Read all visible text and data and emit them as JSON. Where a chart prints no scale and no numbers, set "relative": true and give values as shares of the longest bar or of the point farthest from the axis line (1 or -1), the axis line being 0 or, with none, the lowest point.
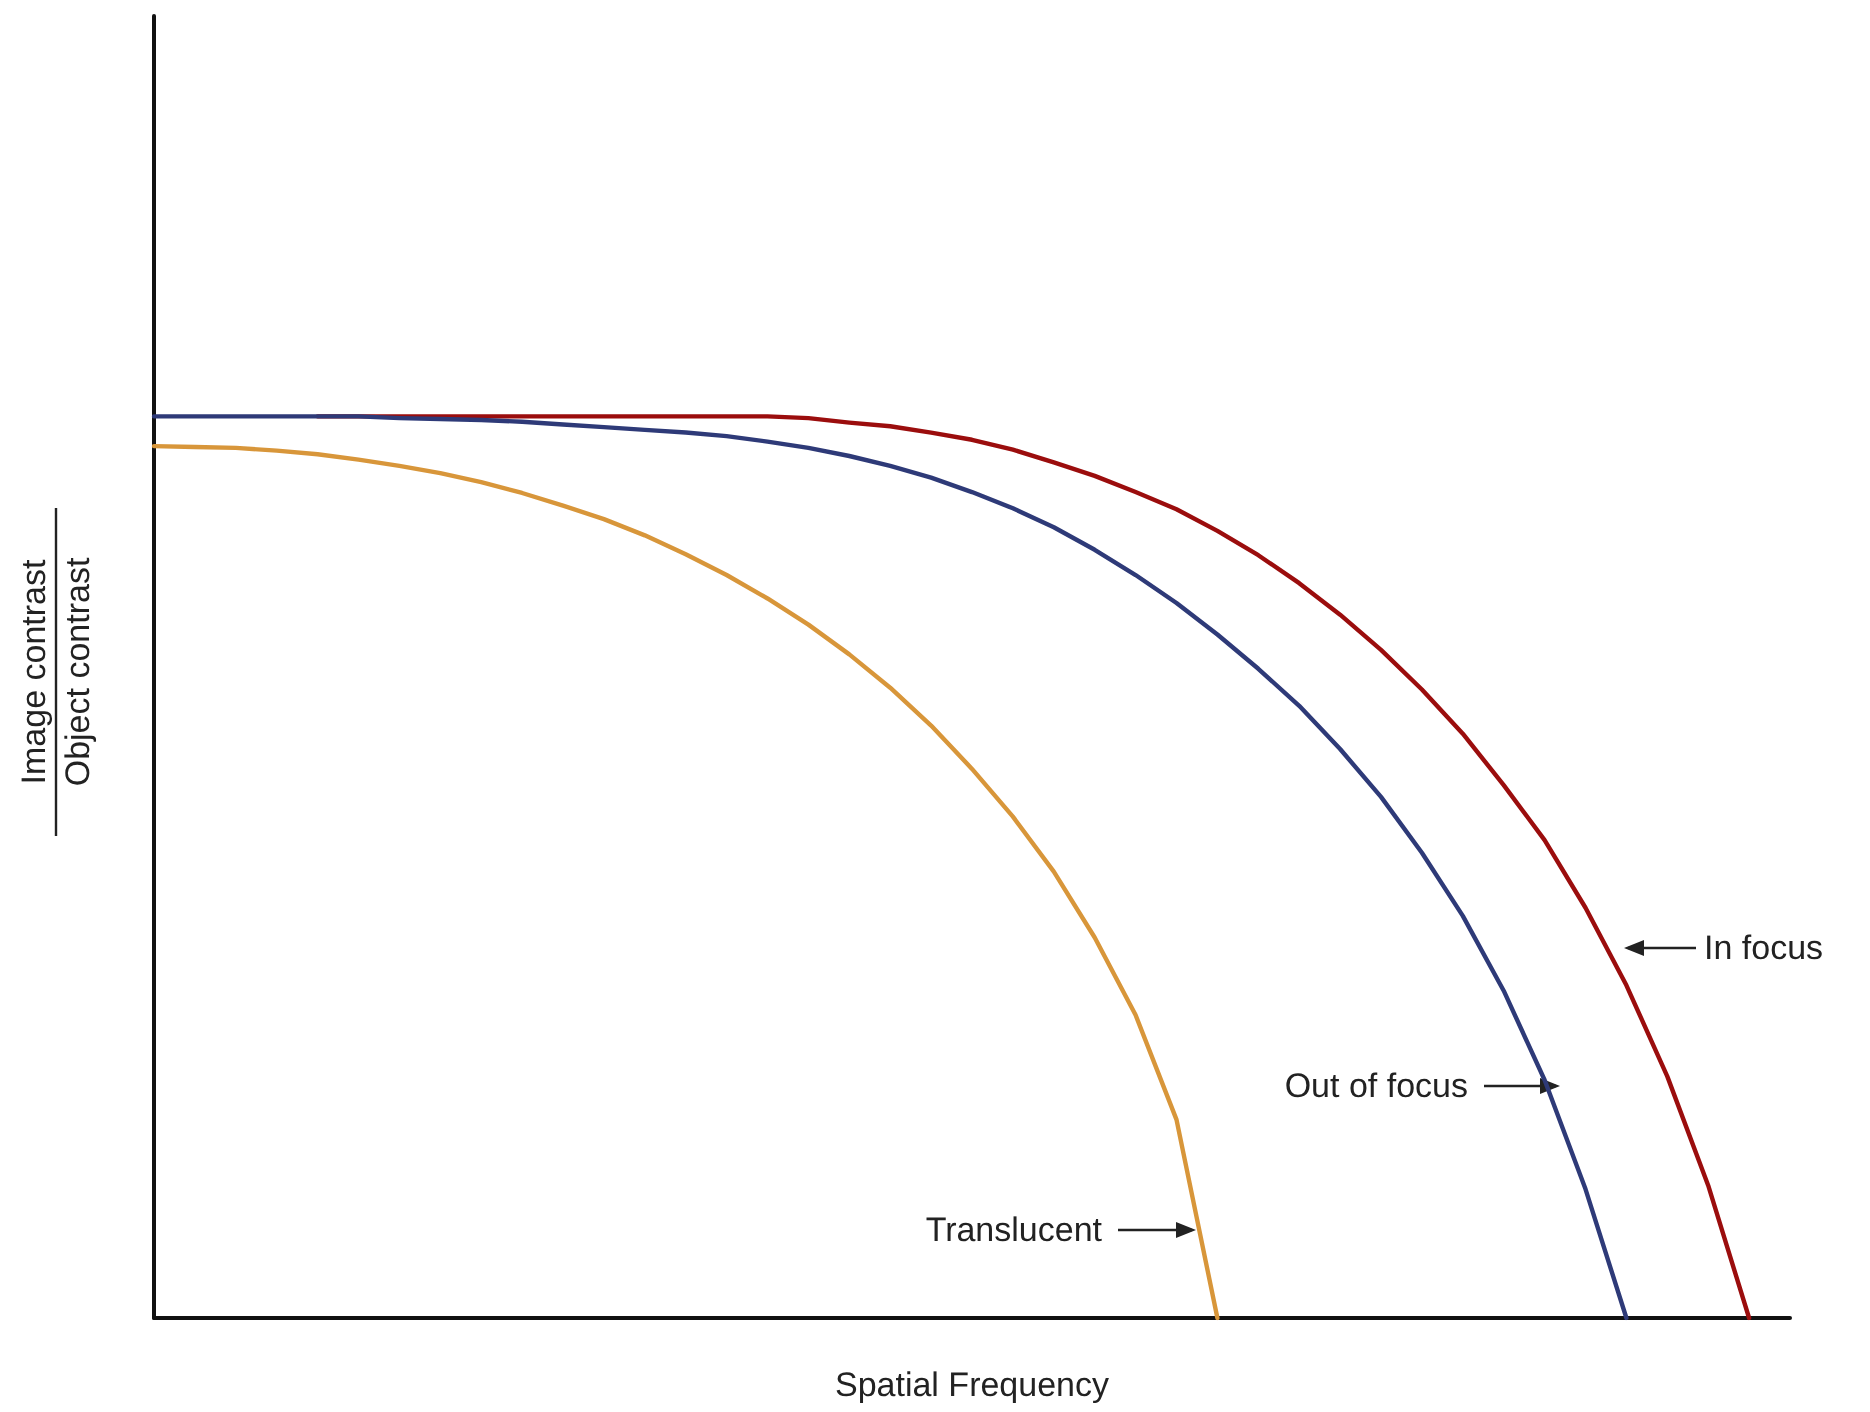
{
  "chart_data": {
    "type": "line",
    "relative": true,
    "xlabel": "Spatial Frequency",
    "ylabel": "Image contrast\nObject contrast",
    "marker": "none",
    "line_style": "solid",
    "grid": false,
    "categories": [
      null,
      null,
      null,
      null,
      null,
      null,
      null,
      null,
      null,
      null,
      null,
      null,
      null,
      null,
      null,
      null,
      null,
      null,
      null,
      null,
      null,
      null,
      null,
      null,
      null,
      null,
      null,
      null,
      null,
      null,
      null,
      null,
      null,
      null,
      null,
      null,
      null,
      null,
      null,
      null,
      null
    ],
    "series": [
      {
        "color": "#9b0d0d",
        "values": [
          null,
          null,
          null,
          null,
          1,
          1,
          1,
          1,
          1,
          1,
          1,
          1,
          1,
          1,
          1,
          1,
          0.998,
          0.993,
          0.989,
          0.982,
          0.974,
          0.963,
          0.949,
          0.934,
          0.916,
          0.897,
          0.873,
          0.846,
          0.815,
          0.78,
          0.741,
          0.697,
          0.648,
          0.591,
          0.53,
          0.455,
          0.369,
          0.268,
          0.147,
          0,
          null
        ]
      },
      {
        "color": "#2e3a78",
        "values": [
          1,
          1,
          1,
          1,
          1,
          1,
          0.998,
          0.997,
          0.996,
          0.994,
          0.991,
          0.988,
          0.985,
          0.982,
          0.978,
          0.972,
          0.965,
          0.956,
          0.945,
          0.932,
          0.916,
          0.898,
          0.877,
          0.852,
          0.824,
          0.793,
          0.758,
          0.72,
          0.679,
          0.631,
          0.578,
          0.516,
          0.446,
          0.363,
          0.264,
          0.143,
          0,
          null,
          null,
          null,
          null
        ]
      },
      {
        "color": "#d8963a",
        "values": [
          0.967,
          0.966,
          0.965,
          0.962,
          0.958,
          0.952,
          0.945,
          0.937,
          0.927,
          0.915,
          0.901,
          0.886,
          0.868,
          0.847,
          0.824,
          0.798,
          0.769,
          0.736,
          0.699,
          0.657,
          0.609,
          0.556,
          0.495,
          0.422,
          0.336,
          0.22,
          0,
          null,
          null,
          null,
          null,
          null,
          null,
          null,
          null,
          null,
          null,
          null,
          null,
          null,
          null
        ]
      }
    ],
    "annotations": [
      "In focus",
      "Out of focus",
      "Translucent"
    ]
  }
}
